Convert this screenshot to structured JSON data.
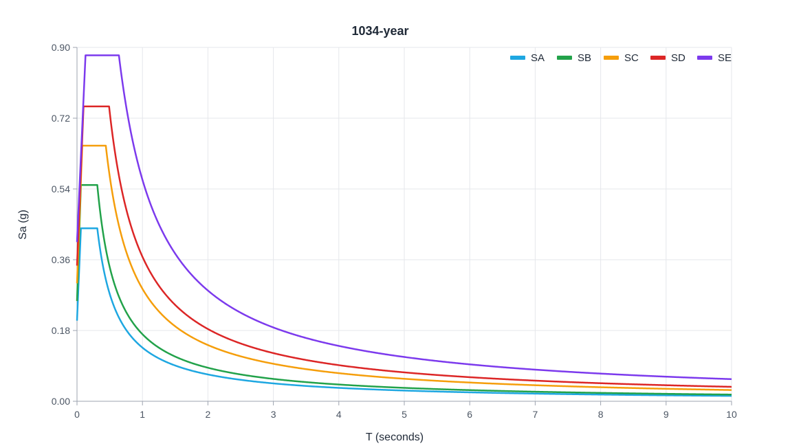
{
  "chart_data": {
    "type": "line",
    "title": "1034-year",
    "xlabel": "T (seconds)",
    "ylabel": "Sa (g)",
    "xlim": [
      0,
      10
    ],
    "ylim": [
      0,
      0.9
    ],
    "x_ticks": [
      "0",
      "1",
      "2",
      "3",
      "4",
      "5",
      "6",
      "7",
      "8",
      "9",
      "10"
    ],
    "y_ticks": [
      "0.00",
      "0.18",
      "0.36",
      "0.54",
      "0.72",
      "0.90"
    ],
    "grid": true,
    "legend_position": "top-right",
    "series": [
      {
        "name": "SA",
        "color": "#1ea7e1",
        "t0": 0.06,
        "ts": 0.31,
        "sds": 0.44,
        "start": 0.205
      },
      {
        "name": "SB",
        "color": "#22a24a",
        "t0": 0.06,
        "ts": 0.31,
        "sds": 0.55,
        "start": 0.255
      },
      {
        "name": "SC",
        "color": "#f59e0b",
        "t0": 0.08,
        "ts": 0.44,
        "sds": 0.65,
        "start": 0.3
      },
      {
        "name": "SD",
        "color": "#dc2626",
        "t0": 0.1,
        "ts": 0.49,
        "sds": 0.75,
        "start": 0.345
      },
      {
        "name": "SE",
        "color": "#7c3aed",
        "t0": 0.13,
        "ts": 0.64,
        "sds": 0.88,
        "start": 0.405
      }
    ]
  }
}
